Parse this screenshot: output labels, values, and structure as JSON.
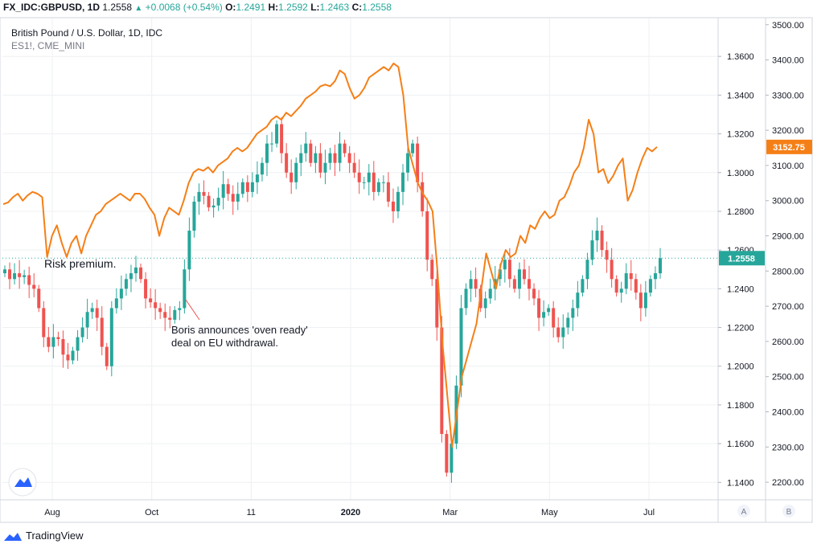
{
  "header": {
    "symbol": "FX_IDC:GBPUSD, 1D",
    "last": "1.2558",
    "change": "+0.0068 (+0.54%)",
    "o_label": "O:",
    "o": "1.2491",
    "h_label": "H:",
    "h": "1.2592",
    "l_label": "L:",
    "l": "1.2463",
    "c_label": "C:",
    "c": "1.2558"
  },
  "legend": {
    "title": "British Pound / U.S. Dollar, 1D, IDC",
    "series2": "ES1!, CME_MINI"
  },
  "annotations": {
    "risk": "Risk premium.",
    "boris_line1": "Boris announces 'oven ready'",
    "boris_line2": "deal on EU withdrawal."
  },
  "badges": {
    "es_last": "3152.75",
    "gbp_last": "1.2558"
  },
  "scale_buttons": [
    "A",
    "B"
  ],
  "footer": {
    "brand": "TradingView"
  },
  "colors": {
    "up": "#26a69a",
    "down": "#ef5350",
    "es": "#f57f17"
  },
  "chart_data": {
    "type": "line",
    "title": "British Pound / U.S. Dollar, 1D, IDC",
    "x_ticks": [
      "Aug",
      "Oct",
      "11",
      "2020",
      "Mar",
      "May",
      "Jul"
    ],
    "axis_a": {
      "ticks": [
        "1.3600",
        "1.3400",
        "1.3200",
        "1.3000",
        "1.2800",
        "1.2600",
        "1.2400",
        "1.2200",
        "1.2000",
        "1.1800",
        "1.1600",
        "1.1400"
      ],
      "range": [
        1.131,
        1.38
      ]
    },
    "axis_b": {
      "ticks": [
        "3500.00",
        "3400.00",
        "3300.00",
        "3200.00",
        "3100.00",
        "3000.00",
        "2900.00",
        "2800.00",
        "2700.00",
        "2600.00",
        "2500.00",
        "2400.00",
        "2300.00",
        "2200.00"
      ],
      "range": [
        2150,
        3520
      ]
    },
    "series": [
      {
        "name": "British Pound / U.S. Dollar",
        "kind": "candles",
        "closes": [
          1.25,
          1.245,
          1.248,
          1.246,
          1.247,
          1.242,
          1.24,
          1.23,
          1.215,
          1.21,
          1.215,
          1.214,
          1.206,
          1.203,
          1.208,
          1.215,
          1.22,
          1.228,
          1.23,
          1.225,
          1.21,
          1.2,
          1.23,
          1.235,
          1.24,
          1.245,
          1.248,
          1.251,
          1.245,
          1.235,
          1.233,
          1.23,
          1.228,
          1.225,
          1.224,
          1.229,
          1.23,
          1.25,
          1.27,
          1.285,
          1.29,
          1.288,
          1.282,
          1.283,
          1.287,
          1.294,
          1.289,
          1.285,
          1.289,
          1.295,
          1.29,
          1.295,
          1.299,
          1.305,
          1.315,
          1.315,
          1.325,
          1.31,
          1.3,
          1.295,
          1.305,
          1.31,
          1.315,
          1.305,
          1.31,
          1.3,
          1.305,
          1.31,
          1.305,
          1.315,
          1.31,
          1.305,
          1.3,
          1.295,
          1.295,
          1.3,
          1.29,
          1.295,
          1.295,
          1.285,
          1.28,
          1.29,
          1.3,
          1.31,
          1.315,
          1.295,
          1.28,
          1.255,
          1.245,
          1.22,
          1.165,
          1.145,
          1.16,
          1.19,
          1.23,
          1.24,
          1.245,
          1.24,
          1.23,
          1.235,
          1.24,
          1.245,
          1.25,
          1.255,
          1.245,
          1.24,
          1.25,
          1.245,
          1.24,
          1.235,
          1.225,
          1.228,
          1.23,
          1.22,
          1.215,
          1.22,
          1.225,
          1.23,
          1.238,
          1.245,
          1.255,
          1.265,
          1.27,
          1.26,
          1.255,
          1.245,
          1.238,
          1.24,
          1.248,
          1.245,
          1.238,
          1.23,
          1.238,
          1.245,
          1.248,
          1.2558
        ]
      },
      {
        "name": "ES1!, CME_MINI",
        "kind": "line",
        "values": [
          2990,
          2995,
          3010,
          3020,
          3000,
          3015,
          3025,
          3020,
          3010,
          2840,
          2900,
          2930,
          2880,
          2840,
          2880,
          2900,
          2850,
          2900,
          2930,
          2960,
          2970,
          2990,
          3000,
          3010,
          3020,
          3010,
          3000,
          3020,
          3020,
          3005,
          2980,
          2960,
          2900,
          2950,
          2980,
          2970,
          2960,
          3000,
          3050,
          3080,
          3090,
          3085,
          3095,
          3080,
          3100,
          3110,
          3120,
          3140,
          3150,
          3140,
          3150,
          3170,
          3190,
          3200,
          3210,
          3230,
          3240,
          3230,
          3250,
          3240,
          3255,
          3270,
          3290,
          3300,
          3310,
          3325,
          3330,
          3325,
          3340,
          3370,
          3360,
          3320,
          3290,
          3300,
          3320,
          3350,
          3360,
          3370,
          3380,
          3370,
          3390,
          3380,
          3300,
          3150,
          3100,
          3050,
          3020,
          3000,
          2970,
          2800,
          2600,
          2450,
          2300,
          2400,
          2500,
          2550,
          2600,
          2650,
          2750,
          2850,
          2800,
          2750,
          2820,
          2860,
          2840,
          2850,
          2900,
          2880,
          2930,
          2920,
          2950,
          2970,
          2950,
          2960,
          3000,
          3010,
          3040,
          3080,
          3100,
          3150,
          3230,
          3190,
          3080,
          3090,
          3050,
          3070,
          3100,
          3120,
          3000,
          3030,
          3080,
          3120,
          3150,
          3140,
          3152.75
        ]
      }
    ]
  }
}
